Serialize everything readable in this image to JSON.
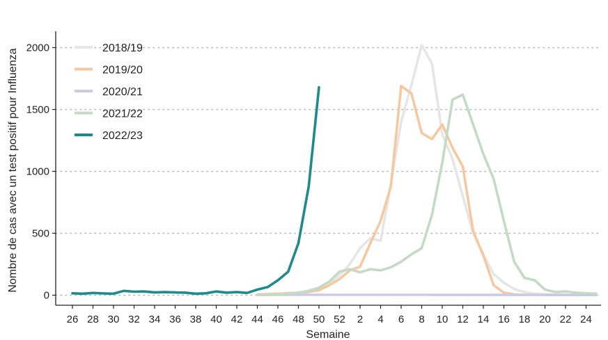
{
  "chart_data": {
    "type": "line",
    "xlabel": "Semaine",
    "ylabel": "Nombre de cas avec un test positif pour Influenza",
    "ylim": [
      0,
      2000
    ],
    "y_ticks": [
      0,
      500,
      1000,
      1500,
      2000
    ],
    "x_ticks": [
      "26",
      "28",
      "30",
      "32",
      "34",
      "36",
      "38",
      "40",
      "42",
      "44",
      "46",
      "48",
      "50",
      "52",
      "2",
      "4",
      "6",
      "8",
      "10",
      "12",
      "14",
      "16",
      "18",
      "20",
      "22",
      "24"
    ],
    "x_order": [
      "26",
      "27",
      "28",
      "29",
      "30",
      "31",
      "32",
      "33",
      "34",
      "35",
      "36",
      "37",
      "38",
      "39",
      "40",
      "41",
      "42",
      "43",
      "44",
      "45",
      "46",
      "47",
      "48",
      "49",
      "50",
      "51",
      "52",
      "1",
      "2",
      "3",
      "4",
      "5",
      "6",
      "7",
      "8",
      "9",
      "10",
      "11",
      "12",
      "13",
      "14",
      "15",
      "16",
      "17",
      "18",
      "19",
      "20",
      "21",
      "22",
      "23",
      "24",
      "25"
    ],
    "grid": "horizontal-dotted",
    "legend_position": "top-left",
    "series": [
      {
        "name": "2018/19",
        "color": "#e6e6e6",
        "points": [
          [
            "44",
            2
          ],
          [
            "45",
            3
          ],
          [
            "46",
            5
          ],
          [
            "47",
            8
          ],
          [
            "48",
            15
          ],
          [
            "49",
            40
          ],
          [
            "50",
            60
          ],
          [
            "51",
            100
          ],
          [
            "52",
            160
          ],
          [
            "1",
            250
          ],
          [
            "2",
            380
          ],
          [
            "3",
            460
          ],
          [
            "4",
            440
          ],
          [
            "5",
            900
          ],
          [
            "6",
            1400
          ],
          [
            "7",
            1700
          ],
          [
            "8",
            2020
          ],
          [
            "9",
            1870
          ],
          [
            "10",
            1300
          ],
          [
            "11",
            1100
          ],
          [
            "12",
            800
          ],
          [
            "13",
            500
          ],
          [
            "14",
            330
          ],
          [
            "15",
            170
          ],
          [
            "16",
            100
          ],
          [
            "17",
            50
          ],
          [
            "18",
            25
          ],
          [
            "19",
            12
          ],
          [
            "20",
            6
          ],
          [
            "21",
            3
          ],
          [
            "22",
            2
          ],
          [
            "23",
            1
          ],
          [
            "24",
            1
          ],
          [
            "25",
            1
          ]
        ]
      },
      {
        "name": "2019/20",
        "color": "#f5c9a0",
        "points": [
          [
            "44",
            5
          ],
          [
            "45",
            8
          ],
          [
            "46",
            12
          ],
          [
            "47",
            16
          ],
          [
            "48",
            20
          ],
          [
            "49",
            26
          ],
          [
            "50",
            40
          ],
          [
            "51",
            80
          ],
          [
            "52",
            130
          ],
          [
            "1",
            200
          ],
          [
            "2",
            230
          ],
          [
            "3",
            420
          ],
          [
            "4",
            600
          ],
          [
            "5",
            880
          ],
          [
            "6",
            1690
          ],
          [
            "7",
            1630
          ],
          [
            "8",
            1310
          ],
          [
            "9",
            1260
          ],
          [
            "10",
            1380
          ],
          [
            "11",
            1190
          ],
          [
            "12",
            1040
          ],
          [
            "13",
            520
          ],
          [
            "14",
            320
          ],
          [
            "15",
            80
          ],
          [
            "16",
            20
          ],
          [
            "17",
            6
          ],
          [
            "18",
            3
          ],
          [
            "19",
            2
          ],
          [
            "20",
            1
          ],
          [
            "21",
            1
          ],
          [
            "22",
            1
          ],
          [
            "23",
            1
          ],
          [
            "24",
            1
          ],
          [
            "25",
            1
          ]
        ]
      },
      {
        "name": "2020/21",
        "color": "#cccae6",
        "points": [
          [
            "44",
            2
          ],
          [
            "48",
            3
          ],
          [
            "52",
            3
          ],
          [
            "4",
            3
          ],
          [
            "8",
            3
          ],
          [
            "12",
            2
          ],
          [
            "16",
            2
          ],
          [
            "20",
            2
          ],
          [
            "25",
            2
          ]
        ]
      },
      {
        "name": "2021/22",
        "color": "#c5d9c7",
        "points": [
          [
            "44",
            1
          ],
          [
            "45",
            2
          ],
          [
            "46",
            4
          ],
          [
            "47",
            10
          ],
          [
            "48",
            20
          ],
          [
            "49",
            30
          ],
          [
            "50",
            60
          ],
          [
            "51",
            110
          ],
          [
            "52",
            190
          ],
          [
            "1",
            210
          ],
          [
            "2",
            185
          ],
          [
            "3",
            210
          ],
          [
            "4",
            200
          ],
          [
            "5",
            225
          ],
          [
            "6",
            270
          ],
          [
            "7",
            330
          ],
          [
            "8",
            380
          ],
          [
            "9",
            650
          ],
          [
            "10",
            1070
          ],
          [
            "11",
            1580
          ],
          [
            "12",
            1620
          ],
          [
            "13",
            1380
          ],
          [
            "14",
            1140
          ],
          [
            "15",
            940
          ],
          [
            "16",
            600
          ],
          [
            "17",
            270
          ],
          [
            "18",
            140
          ],
          [
            "19",
            120
          ],
          [
            "20",
            45
          ],
          [
            "21",
            25
          ],
          [
            "22",
            30
          ],
          [
            "23",
            20
          ],
          [
            "24",
            15
          ],
          [
            "25",
            12
          ]
        ]
      },
      {
        "name": "2022/23",
        "color": "#1f8a8a",
        "points": [
          [
            "26",
            15
          ],
          [
            "27",
            12
          ],
          [
            "28",
            18
          ],
          [
            "29",
            14
          ],
          [
            "30",
            12
          ],
          [
            "31",
            35
          ],
          [
            "32",
            28
          ],
          [
            "33",
            30
          ],
          [
            "34",
            22
          ],
          [
            "35",
            25
          ],
          [
            "36",
            22
          ],
          [
            "37",
            20
          ],
          [
            "38",
            12
          ],
          [
            "39",
            15
          ],
          [
            "40",
            30
          ],
          [
            "41",
            20
          ],
          [
            "42",
            25
          ],
          [
            "43",
            18
          ],
          [
            "44",
            45
          ],
          [
            "45",
            65
          ],
          [
            "46",
            120
          ],
          [
            "47",
            190
          ],
          [
            "48",
            420
          ],
          [
            "49",
            880
          ],
          [
            "50",
            1680
          ]
        ]
      }
    ]
  }
}
